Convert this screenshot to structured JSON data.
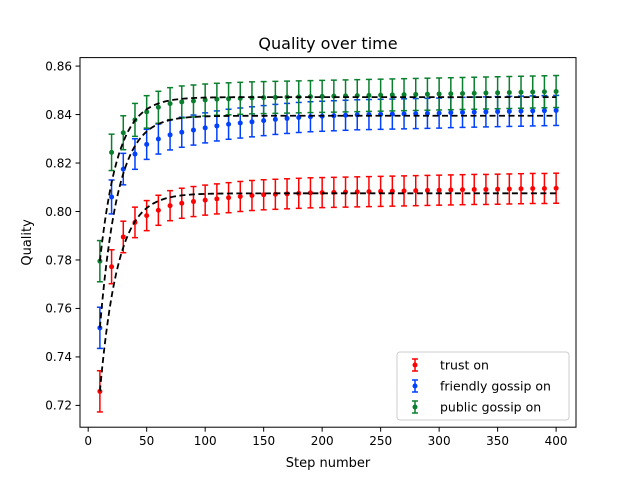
{
  "chart_data": {
    "type": "scatter",
    "title": "Quality over time",
    "xlabel": "Step number",
    "ylabel": "Quality",
    "xlim": [
      -7,
      417
    ],
    "ylim": [
      0.711,
      0.8635
    ],
    "xticks": [
      0,
      50,
      100,
      150,
      200,
      250,
      300,
      350,
      400
    ],
    "xtick_labels": [
      "0",
      "50",
      "100",
      "150",
      "200",
      "250",
      "300",
      "350",
      "400"
    ],
    "yticks": [
      0.72,
      0.74,
      0.76,
      0.78,
      0.8,
      0.82,
      0.84,
      0.86
    ],
    "ytick_labels": [
      "0.72",
      "0.74",
      "0.76",
      "0.78",
      "0.80",
      "0.82",
      "0.84",
      "0.86"
    ],
    "grid": false,
    "legend_position": "bottom-right",
    "x": [
      10,
      20,
      30,
      40,
      50,
      60,
      70,
      80,
      90,
      100,
      110,
      120,
      130,
      140,
      150,
      160,
      170,
      180,
      190,
      200,
      210,
      220,
      230,
      240,
      250,
      260,
      270,
      280,
      290,
      300,
      310,
      320,
      330,
      340,
      350,
      360,
      370,
      380,
      390,
      400
    ],
    "series": [
      {
        "name": "trust on",
        "color": "#ff0000",
        "values": [
          0.7258,
          0.7772,
          0.7895,
          0.7955,
          0.7983,
          0.8005,
          0.8024,
          0.8034,
          0.8041,
          0.8047,
          0.8052,
          0.8057,
          0.8062,
          0.8066,
          0.8069,
          0.8071,
          0.8073,
          0.8075,
          0.8077,
          0.8078,
          0.8079,
          0.808,
          0.8081,
          0.8082,
          0.8083,
          0.8084,
          0.8085,
          0.8086,
          0.8087,
          0.8088,
          0.8089,
          0.809,
          0.8091,
          0.8091,
          0.8092,
          0.8093,
          0.8094,
          0.8095,
          0.8095,
          0.8096
        ],
        "errors": [
          0.0085,
          0.007,
          0.0065,
          0.0063,
          0.0062,
          0.0062,
          0.0062,
          0.0062,
          0.0062,
          0.0062,
          0.0062,
          0.0062,
          0.0062,
          0.0062,
          0.0062,
          0.0062,
          0.0062,
          0.0062,
          0.0062,
          0.0062,
          0.0062,
          0.0062,
          0.0062,
          0.0062,
          0.0062,
          0.0062,
          0.0062,
          0.0062,
          0.0062,
          0.0062,
          0.0062,
          0.0062,
          0.0062,
          0.0062,
          0.0062,
          0.0062,
          0.0062,
          0.0062,
          0.0062,
          0.0062
        ],
        "fit": {
          "asymptote": 0.8075,
          "start": 0.7258,
          "rate": 0.065
        }
      },
      {
        "name": "friendly gossip on",
        "color": "#0040ff",
        "values": [
          0.752,
          0.806,
          0.8175,
          0.8237,
          0.8277,
          0.8299,
          0.8316,
          0.8327,
          0.8336,
          0.8345,
          0.8353,
          0.836,
          0.8365,
          0.837,
          0.8375,
          0.838,
          0.8384,
          0.8388,
          0.8391,
          0.8393,
          0.8395,
          0.8397,
          0.8399,
          0.84,
          0.8401,
          0.8402,
          0.8403,
          0.8404,
          0.8405,
          0.8406,
          0.8408,
          0.8409,
          0.841,
          0.8411,
          0.8412,
          0.8413,
          0.8414,
          0.8415,
          0.8416,
          0.8417
        ],
        "errors": [
          0.0085,
          0.007,
          0.0065,
          0.0063,
          0.0062,
          0.0062,
          0.0062,
          0.0062,
          0.0062,
          0.0062,
          0.0062,
          0.0062,
          0.0062,
          0.0062,
          0.0062,
          0.0062,
          0.0062,
          0.0062,
          0.0062,
          0.0062,
          0.0062,
          0.0062,
          0.0062,
          0.0062,
          0.0062,
          0.0062,
          0.0062,
          0.0062,
          0.0062,
          0.0062,
          0.0062,
          0.0062,
          0.0062,
          0.0062,
          0.0062,
          0.0062,
          0.0062,
          0.0062,
          0.0062,
          0.0062
        ],
        "fit": {
          "asymptote": 0.8395,
          "start": 0.752,
          "rate": 0.065
        }
      },
      {
        "name": "public gossip on",
        "color": "#0a7f2e",
        "values": [
          0.7795,
          0.8244,
          0.8325,
          0.8378,
          0.8411,
          0.843,
          0.8445,
          0.8452,
          0.8456,
          0.846,
          0.8463,
          0.8465,
          0.8467,
          0.8469,
          0.847,
          0.8471,
          0.8472,
          0.8473,
          0.8474,
          0.8475,
          0.8476,
          0.8477,
          0.8478,
          0.8479,
          0.848,
          0.8481,
          0.8482,
          0.8483,
          0.8484,
          0.8485,
          0.8486,
          0.8487,
          0.8488,
          0.8489,
          0.849,
          0.8491,
          0.8492,
          0.8493,
          0.8494,
          0.8495
        ],
        "errors": [
          0.0085,
          0.0075,
          0.007,
          0.0068,
          0.0067,
          0.0066,
          0.0066,
          0.0066,
          0.0066,
          0.0066,
          0.0066,
          0.0066,
          0.0066,
          0.0066,
          0.0066,
          0.0066,
          0.0066,
          0.0066,
          0.0066,
          0.0066,
          0.0066,
          0.0066,
          0.0066,
          0.0066,
          0.0066,
          0.0066,
          0.0066,
          0.0066,
          0.0066,
          0.0066,
          0.0066,
          0.0066,
          0.0066,
          0.0066,
          0.0066,
          0.0066,
          0.0066,
          0.0066,
          0.0066,
          0.0066
        ],
        "fit": {
          "asymptote": 0.8472,
          "start": 0.7795,
          "rate": 0.065
        }
      }
    ],
    "fit_line_color": "#000000"
  }
}
